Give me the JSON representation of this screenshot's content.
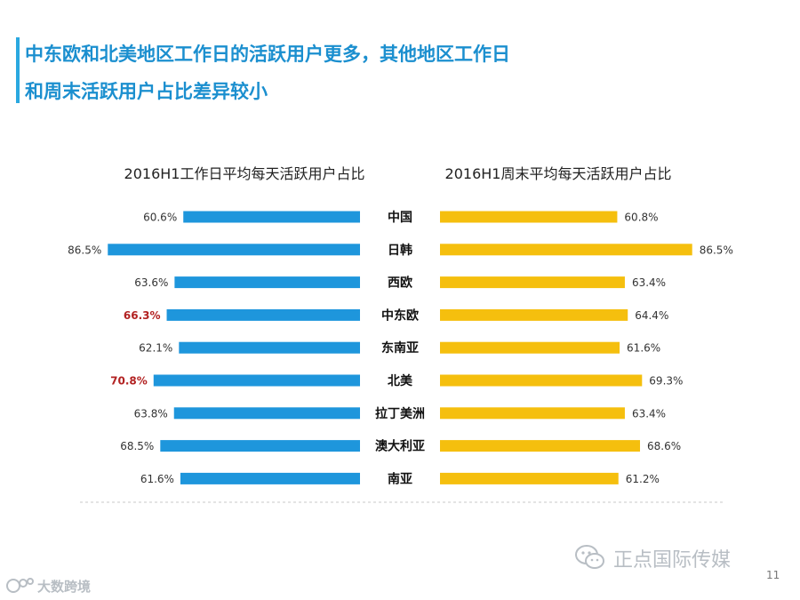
{
  "slide": {
    "title_line_1": "中东欧和北美地区工作日的活跃用户更多，其他地区工作日",
    "title_line_2": "和周末活跃用户占比差异较小",
    "page_number": "11"
  },
  "watermarks": {
    "wechat_name": "正点国际传媒",
    "brand_name": "大数跨境"
  },
  "colors": {
    "accent": "#1b8fcf",
    "weekday_bar": "#1e96dc",
    "weekend_bar": "#f5bf0e",
    "highlight": "#b22222"
  },
  "chart_data": {
    "type": "bar",
    "orientation": "horizontal-butterfly",
    "categories": [
      "中国",
      "日韩",
      "西欧",
      "中东欧",
      "东南亚",
      "北美",
      "拉丁美洲",
      "澳大利亚",
      "南亚"
    ],
    "series": [
      {
        "name": "2016H1工作日平均每天活跃用户占比",
        "direction": "left",
        "values": [
          60.6,
          86.5,
          63.6,
          66.3,
          62.1,
          70.8,
          63.8,
          68.5,
          61.6
        ],
        "labels": [
          "60.6%",
          "86.5%",
          "63.6%",
          "66.3%",
          "62.1%",
          "70.8%",
          "63.8%",
          "68.5%",
          "61.6%"
        ],
        "highlighted": [
          false,
          false,
          false,
          true,
          false,
          true,
          false,
          false,
          false
        ]
      },
      {
        "name": "2016H1周末平均每天活跃用户占比",
        "direction": "right",
        "values": [
          60.8,
          86.5,
          63.4,
          64.4,
          61.6,
          69.3,
          63.4,
          68.6,
          61.2
        ],
        "labels": [
          "60.8%",
          "86.5%",
          "63.4%",
          "64.4%",
          "61.6%",
          "69.3%",
          "63.4%",
          "68.6%",
          "61.2%"
        ],
        "highlighted": [
          false,
          false,
          false,
          false,
          false,
          false,
          false,
          false,
          false
        ]
      }
    ],
    "xlim": [
      0,
      100
    ],
    "value_unit": "%",
    "grid": false,
    "legend": "none"
  }
}
